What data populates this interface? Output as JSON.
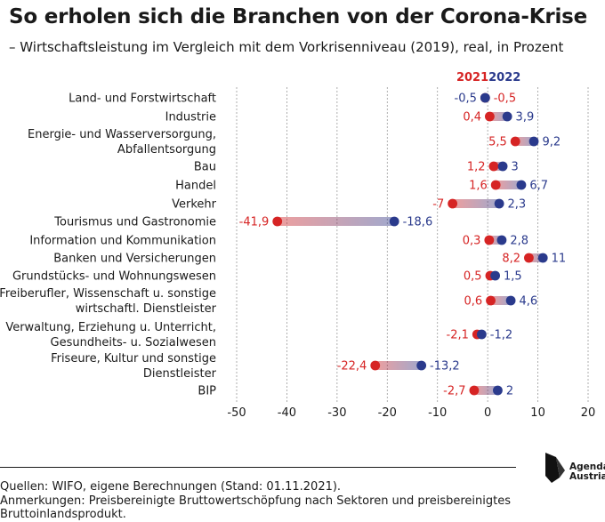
{
  "header": {
    "title": "So erholen sich die Branchen von der Corona-Krise",
    "subtitle": "– Wirtschaftsleistung im Vergleich mit dem Vorkrisenniveau (2019), real, in Prozent"
  },
  "chart_data": {
    "type": "dumbbell",
    "xlim": [
      -50,
      20
    ],
    "x_ticks": [
      -50,
      -40,
      -30,
      -20,
      -10,
      0,
      10,
      20
    ],
    "x_tick_labels": [
      "-50",
      "-40",
      "-30",
      "-20",
      "-10",
      "0",
      "10",
      "20"
    ],
    "grid": "vertical",
    "legend": "top-right",
    "series": [
      {
        "name": "2021",
        "color": "#d62424",
        "values": [
          -0.5,
          0.4,
          5.5,
          1.2,
          1.6,
          -7,
          -41.9,
          0.3,
          8.2,
          0.5,
          0.6,
          -2.1,
          -22.4,
          -2.7
        ],
        "labels": [
          "-0,5",
          "0,4",
          "5,5",
          "1,2",
          "1,6",
          "-7",
          "-41,9",
          "0,3",
          "8,2",
          "0,5",
          "0,6",
          "-2,1",
          "-22,4",
          "-2,7"
        ]
      },
      {
        "name": "2022",
        "color": "#2a3a8c",
        "values": [
          -0.5,
          3.9,
          9.2,
          3,
          6.7,
          2.3,
          -18.6,
          2.8,
          11,
          1.5,
          4.6,
          -1.2,
          -13.2,
          2
        ],
        "labels": [
          "-0,5",
          "3,9",
          "9,2",
          "3",
          "6,7",
          "2,3",
          "-18,6",
          "2,8",
          "11",
          "1,5",
          "4,6",
          "-1,2",
          "-13,2",
          "2"
        ]
      }
    ],
    "categories": [
      [
        "Land- und Forstwirtschaft"
      ],
      [
        "Industrie"
      ],
      [
        "Energie- und Wasserversorgung,",
        "Abfallentsorgung"
      ],
      [
        "Bau"
      ],
      [
        "Handel"
      ],
      [
        "Verkehr"
      ],
      [
        "Tourismus und Gastronomie"
      ],
      [
        "Information und Kommunikation"
      ],
      [
        "Banken und Versicherungen"
      ],
      [
        "Grundstücks- und Wohnungswesen"
      ],
      [
        "Freiberufler, Wissenschaft u. sonstige",
        "wirtschaftl. Dienstleister"
      ],
      [
        "Verwaltung, Erziehung u. Unterricht,",
        "Gesundheits- u. Sozialwesen"
      ],
      [
        "Friseure, Kultur und sonstige",
        "Dienstleister"
      ],
      [
        "BIP"
      ]
    ]
  },
  "footer": {
    "sources": "Quellen: WIFO, eigene Berechnungen (Stand: 01.11.2021).",
    "notes_1": "Anmerkungen: Preisbereinigte Bruttowertschöpfung nach Sektoren und preisbereinigtes",
    "notes_2": "Bruttoinlandsprodukt.",
    "logo_line1": "Agenda",
    "logo_line2": "Austria"
  }
}
